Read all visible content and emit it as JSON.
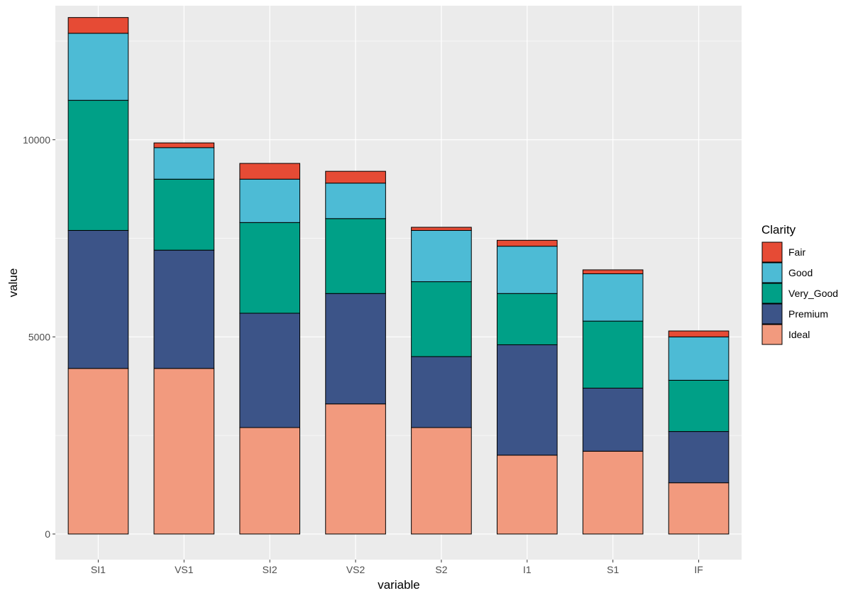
{
  "chart_data": {
    "type": "bar",
    "stacked": true,
    "xlabel": "variable",
    "ylabel": "value",
    "categories": [
      "SI1",
      "VS1",
      "SI2",
      "VS2",
      "S2",
      "I1",
      "S1",
      "IF"
    ],
    "ylim": [
      -650,
      13400
    ],
    "yticks": [
      0,
      5000,
      10000
    ],
    "grid": true,
    "legend": {
      "title": "Clarity",
      "position": "right",
      "entries": [
        "Fair",
        "Good",
        "Very_Good",
        "Premium",
        "Ideal"
      ]
    },
    "series": [
      {
        "name": "Ideal",
        "color": "#F29A7E",
        "values": [
          4200,
          4200,
          2700,
          3300,
          2700,
          2000,
          2100,
          1300
        ]
      },
      {
        "name": "Premium",
        "color": "#3C5488",
        "values": [
          3500,
          3000,
          2900,
          2800,
          1800,
          2800,
          1600,
          1300
        ]
      },
      {
        "name": "Very_Good",
        "color": "#00A087",
        "values": [
          3300,
          1800,
          2300,
          1900,
          1900,
          1300,
          1700,
          1300
        ]
      },
      {
        "name": "Good",
        "color": "#4DBBD5",
        "values": [
          1700,
          800,
          1100,
          900,
          1300,
          1200,
          1200,
          1100
        ]
      },
      {
        "name": "Fair",
        "color": "#E64B35",
        "values": [
          400,
          120,
          400,
          300,
          80,
          150,
          100,
          150
        ]
      }
    ]
  }
}
